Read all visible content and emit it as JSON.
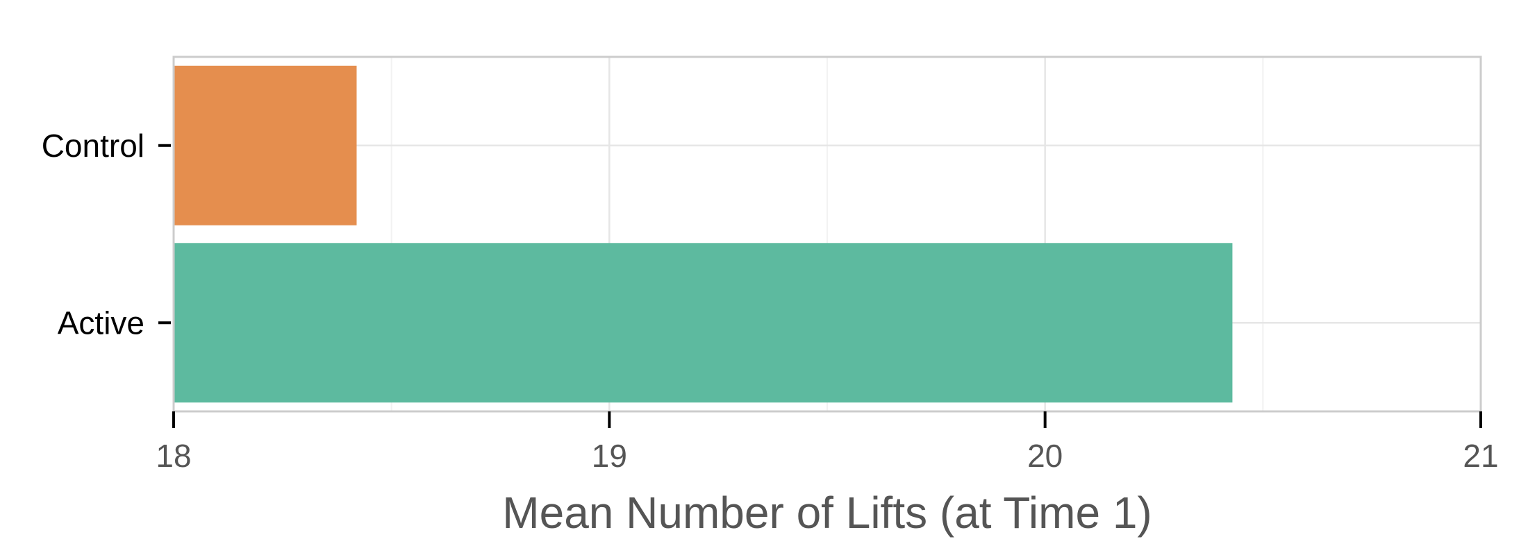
{
  "chart_data": {
    "type": "bar",
    "orientation": "horizontal",
    "title": "",
    "xlabel": "Mean Number of Lifts (at Time 1)",
    "ylabel": "",
    "xlim": [
      18,
      21
    ],
    "x_ticks": [
      18,
      19,
      20,
      21
    ],
    "categories": [
      "Control",
      "Active"
    ],
    "values": [
      18.42,
      20.43
    ],
    "colors": {
      "Control": "#e58e4e",
      "Active": "#5dba9f"
    },
    "grid": true,
    "legend": "none"
  }
}
